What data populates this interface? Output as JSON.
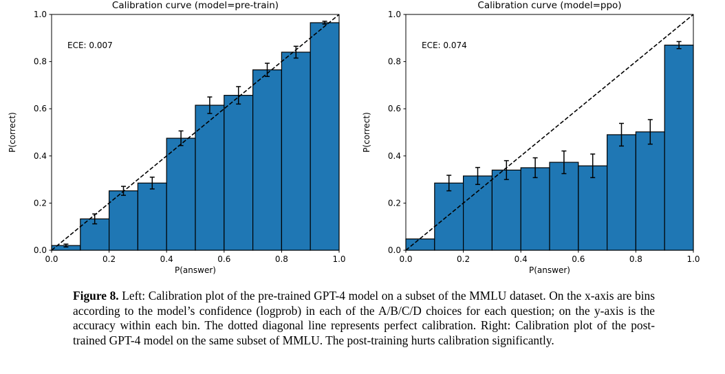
{
  "figure": {
    "background_color": "#ffffff",
    "accent_color": "#1f77b4"
  },
  "chart_data": [
    {
      "type": "bar",
      "title": "Calibration curve (model=pre-train)",
      "annotation": "ECE: 0.007",
      "xlabel": "P(answer)",
      "ylabel": "P(correct)",
      "xlim": [
        0.0,
        1.0
      ],
      "ylim": [
        0.0,
        1.0
      ],
      "x_ticks": [
        0.0,
        0.2,
        0.4,
        0.6,
        0.8,
        1.0
      ],
      "y_ticks": [
        0.0,
        0.2,
        0.4,
        0.6,
        0.8,
        1.0
      ],
      "bin_width": 0.1,
      "bin_centers": [
        0.05,
        0.15,
        0.25,
        0.35,
        0.45,
        0.55,
        0.65,
        0.75,
        0.85,
        0.95
      ],
      "values": [
        0.02,
        0.133,
        0.252,
        0.285,
        0.475,
        0.615,
        0.657,
        0.765,
        0.84,
        0.965
      ],
      "errors": [
        0.006,
        0.021,
        0.019,
        0.025,
        0.031,
        0.035,
        0.037,
        0.028,
        0.025,
        0.006
      ],
      "diagonal_line": "dashed y=x perfect calibration",
      "bar_color": "#1f77b4",
      "bar_edge_color": "#000000",
      "grid": false,
      "legend": "none"
    },
    {
      "type": "bar",
      "title": "Calibration curve (model=ppo)",
      "annotation": "ECE: 0.074",
      "xlabel": "P(answer)",
      "ylabel": "P(correct)",
      "xlim": [
        0.0,
        1.0
      ],
      "ylim": [
        0.0,
        1.0
      ],
      "x_ticks": [
        0.0,
        0.2,
        0.4,
        0.6,
        0.8,
        1.0
      ],
      "y_ticks": [
        0.0,
        0.2,
        0.4,
        0.6,
        0.8,
        1.0
      ],
      "bin_width": 0.1,
      "bin_centers": [
        0.05,
        0.15,
        0.25,
        0.35,
        0.45,
        0.55,
        0.65,
        0.75,
        0.85,
        0.95
      ],
      "values": [
        0.048,
        0.285,
        0.315,
        0.34,
        0.35,
        0.373,
        0.358,
        0.49,
        0.502,
        0.87
      ],
      "errors": [
        0,
        0.033,
        0.036,
        0.04,
        0.042,
        0.048,
        0.05,
        0.048,
        0.052,
        0.015
      ],
      "diagonal_line": "dashed y=x perfect calibration",
      "bar_color": "#1f77b4",
      "bar_edge_color": "#000000",
      "grid": false,
      "legend": "none"
    }
  ],
  "caption": {
    "label": "Figure 8.",
    "text": "Left: Calibration plot of the pre-trained GPT-4 model on a subset of the MMLU dataset. On the x-axis are bins according to the model’s confidence (logprob) in each of the A/B/C/D choices for each question; on the y-axis is the accuracy within each bin. The dotted diagonal line represents perfect calibration. Right: Calibration plot of the post-trained GPT-4 model on the same subset of MMLU. The post-training hurts calibration significantly."
  }
}
